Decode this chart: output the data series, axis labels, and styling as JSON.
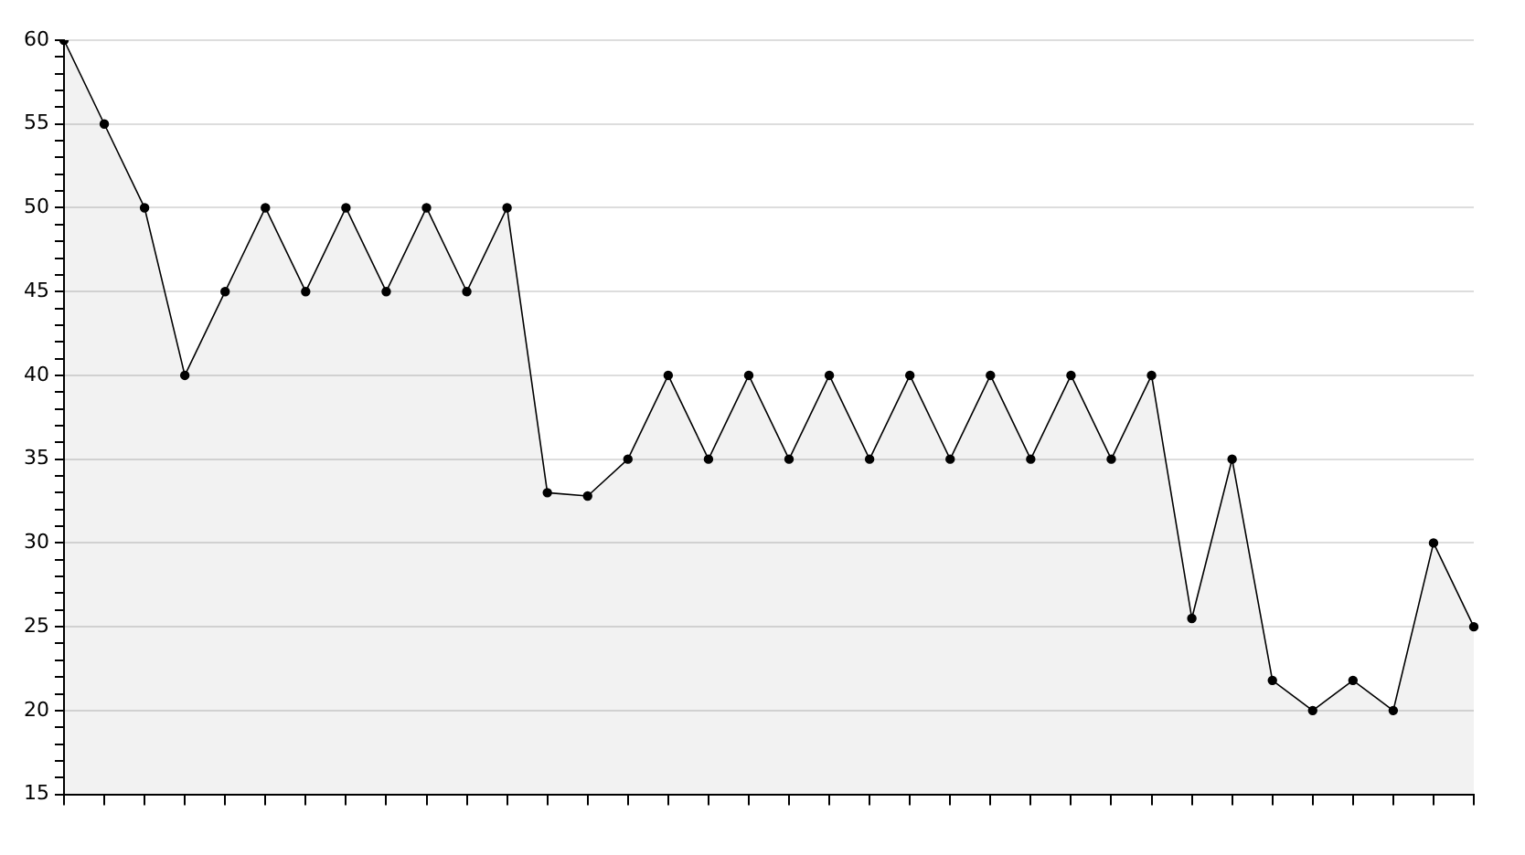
{
  "chart_data": {
    "type": "area",
    "categories": [
      null,
      null,
      null,
      null,
      null,
      null,
      null,
      null,
      null,
      null,
      null,
      null,
      null,
      null,
      null,
      null,
      null,
      null,
      null,
      null,
      null,
      null,
      null,
      null,
      null,
      null,
      null,
      null,
      null,
      null,
      null,
      null,
      null,
      null,
      null,
      null
    ],
    "series": [
      {
        "color": "#000000",
        "values": [
          60,
          55,
          50,
          40,
          45,
          50,
          45,
          50,
          45,
          50,
          45,
          50,
          33,
          32.8,
          35,
          40,
          35,
          40,
          35,
          40,
          35,
          40,
          35,
          40,
          35,
          40,
          35,
          40,
          25.5,
          35,
          21.8,
          20,
          21.8,
          20,
          30,
          25
        ]
      }
    ],
    "ylim": [
      15,
      60
    ],
    "yticks": [
      15,
      {
        "value": 16,
        "label": null
      },
      {
        "value": 17,
        "label": null
      },
      {
        "value": 18,
        "label": null
      },
      {
        "value": 19,
        "label": null
      },
      20,
      {
        "value": 21,
        "label": null
      },
      {
        "value": 22,
        "label": null
      },
      {
        "value": 23,
        "label": null
      },
      {
        "value": 24,
        "label": null
      },
      25,
      {
        "value": 26,
        "label": null
      },
      {
        "value": 27,
        "label": null
      },
      {
        "value": 28,
        "label": null
      },
      {
        "value": 29,
        "label": null
      },
      30,
      {
        "value": 31,
        "label": null
      },
      {
        "value": 32,
        "label": null
      },
      {
        "value": 33,
        "label": null
      },
      {
        "value": 34,
        "label": null
      },
      35,
      {
        "value": 36,
        "label": null
      },
      {
        "value": 37,
        "label": null
      },
      {
        "value": 38,
        "label": null
      },
      {
        "value": 39,
        "label": null
      },
      40,
      {
        "value": 41,
        "label": null
      },
      {
        "value": 42,
        "label": null
      },
      {
        "value": 43,
        "label": null
      },
      {
        "value": 44,
        "label": null
      },
      45,
      {
        "value": 46,
        "label": null
      },
      {
        "value": 47,
        "label": null
      },
      {
        "value": 48,
        "label": null
      },
      {
        "value": 49,
        "label": null
      },
      50,
      {
        "value": 51,
        "label": null
      },
      {
        "value": 52,
        "label": null
      },
      {
        "value": 53,
        "label": null
      },
      {
        "value": 54,
        "label": null
      },
      55,
      {
        "value": 56,
        "label": null
      },
      {
        "value": 57,
        "label": null
      },
      {
        "value": 58,
        "label": null
      },
      {
        "value": 59,
        "label": null
      },
      60
    ],
    "grid": "y",
    "marker": "circle",
    "line_style": "solid",
    "tick_labels": "y",
    "legend": false
  }
}
